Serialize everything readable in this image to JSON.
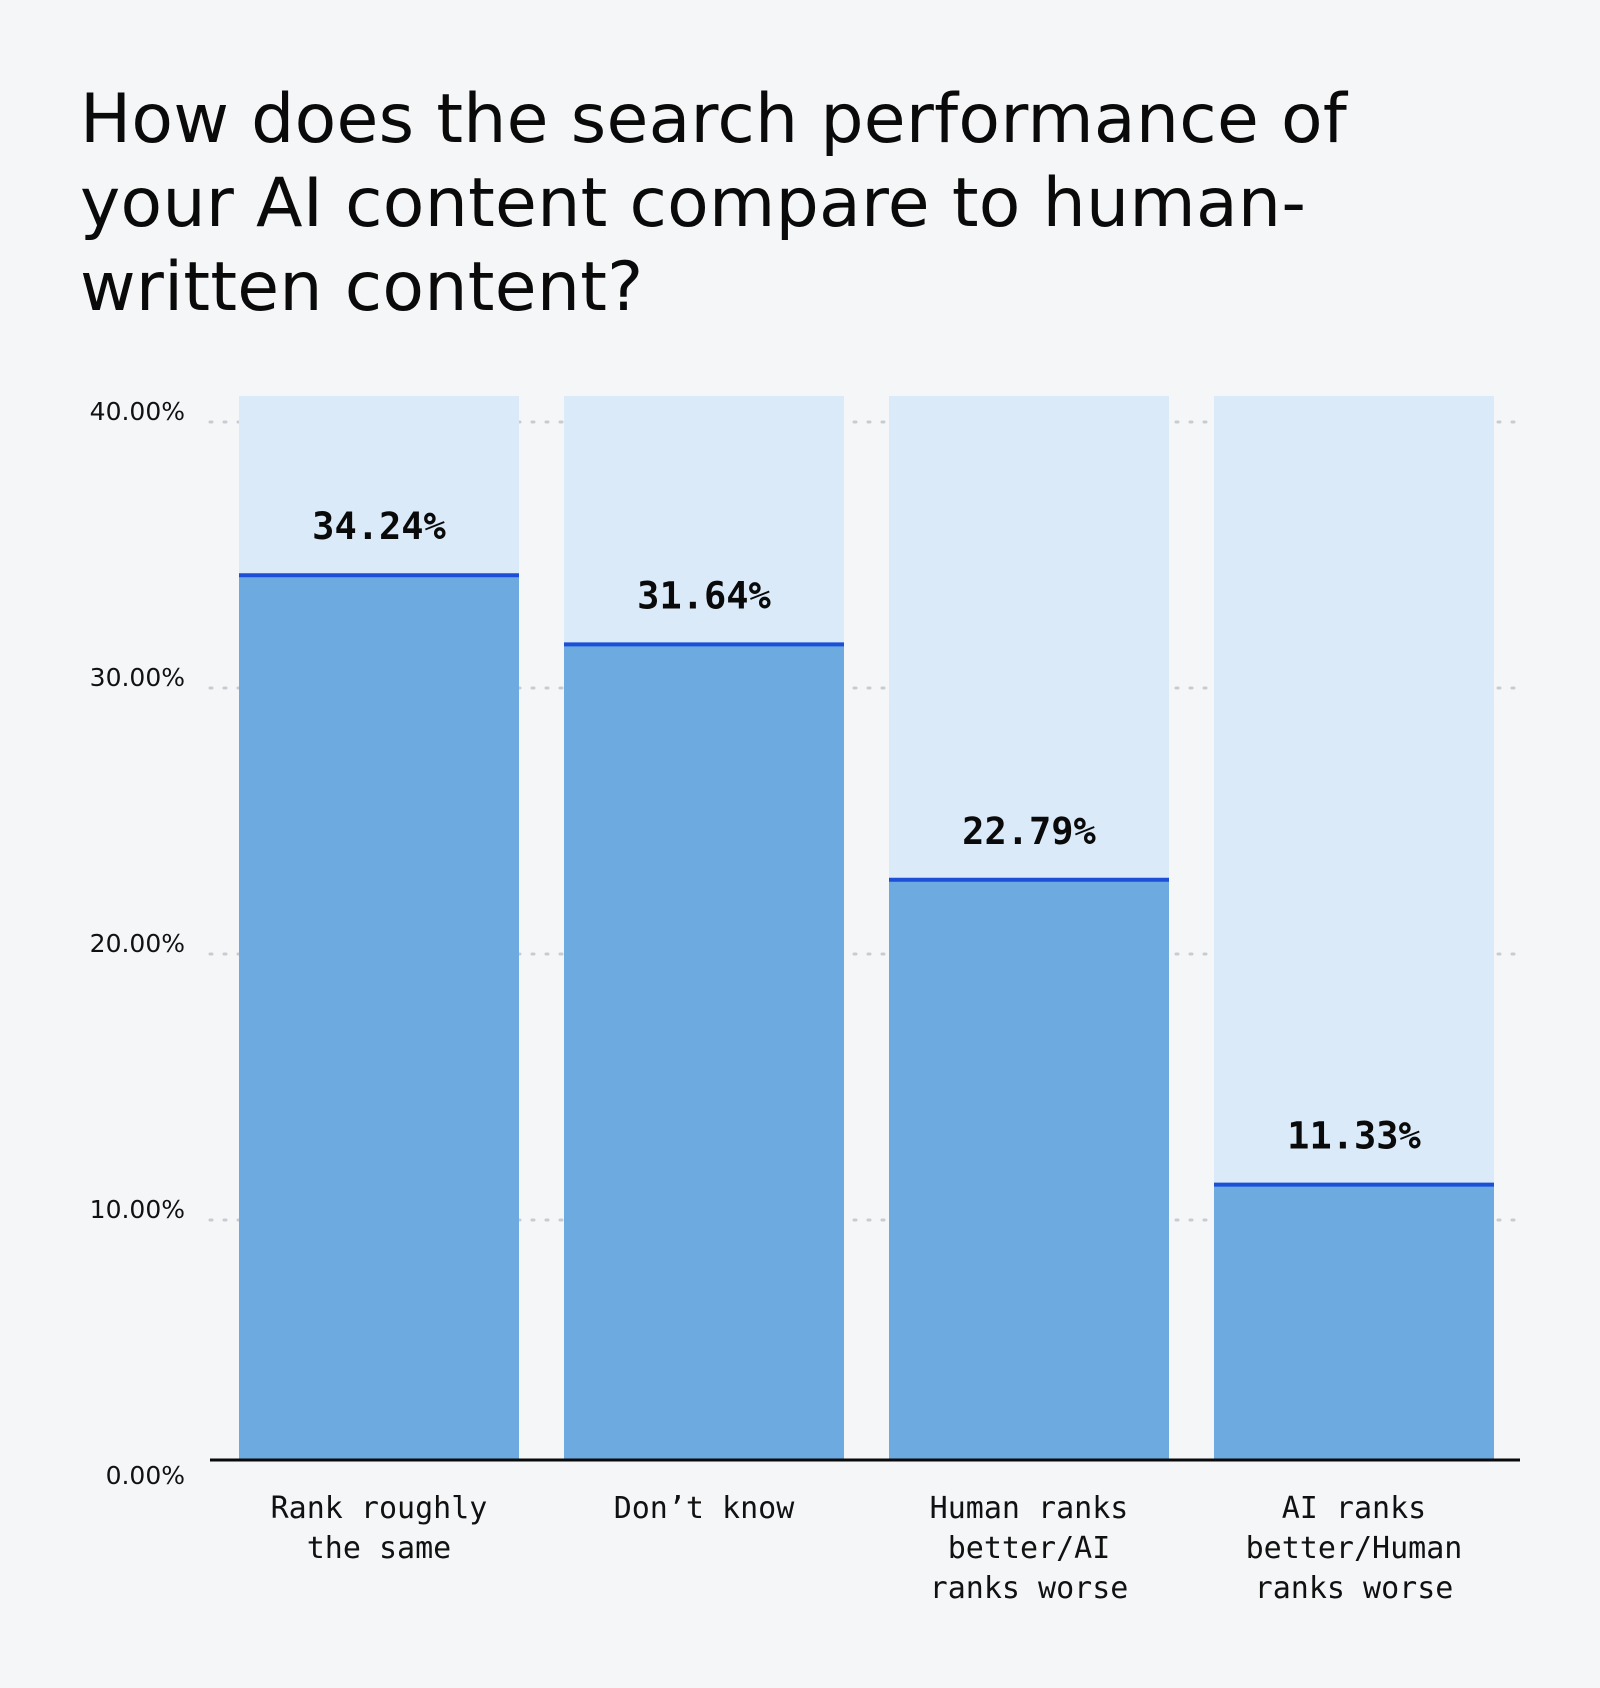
{
  "chart_data": {
    "type": "bar",
    "title": "How does the search performance of your AI content compare to human-written content?",
    "categories": [
      [
        "Rank roughly",
        "the same"
      ],
      [
        "Don’t know"
      ],
      [
        "Human ranks",
        "better/AI",
        "ranks worse"
      ],
      [
        "AI ranks",
        "better/Human",
        "ranks worse"
      ]
    ],
    "values": [
      34.24,
      31.64,
      22.79,
      11.33
    ],
    "value_labels": [
      "34.24%",
      "31.64%",
      "22.79%",
      "11.33%"
    ],
    "yticks": [
      0,
      10,
      20,
      30,
      40
    ],
    "ytick_labels": [
      "0.00%",
      "10.00%",
      "20.00%",
      "30.00%",
      "40.00%"
    ],
    "ylim": [
      0,
      41
    ],
    "xlabel": "",
    "ylabel": "",
    "grid": true,
    "legend": false,
    "colors": {
      "bar": "#6caae0",
      "bar_background": "#daeaf9",
      "bar_top_line": "#1a4fd6",
      "axis": "#0a0a0a",
      "grid": "#c8ccd2"
    }
  }
}
